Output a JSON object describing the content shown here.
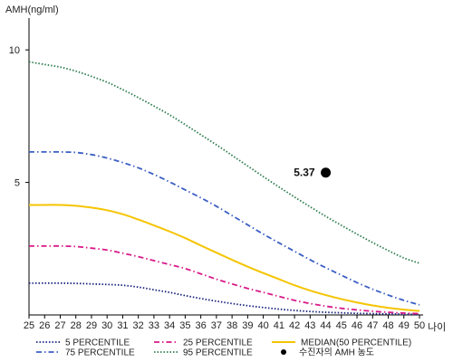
{
  "chart_data": {
    "type": "line",
    "ylabel": "AMH(ng/ml)",
    "xlabel": "나이",
    "x": [
      25,
      26,
      27,
      28,
      29,
      30,
      31,
      32,
      33,
      34,
      35,
      36,
      37,
      38,
      39,
      40,
      41,
      42,
      43,
      44,
      45,
      46,
      47,
      48,
      49,
      50
    ],
    "x_tick_labels": [
      "25",
      "26",
      "27",
      "28",
      "29",
      "30",
      "31",
      "32",
      "33",
      "34",
      "35",
      "36",
      "37",
      "38",
      "39",
      "40",
      "41",
      "42",
      "43",
      "44",
      "45",
      "46",
      "47",
      "48",
      "49",
      "50"
    ],
    "y_ticks": [
      5,
      10
    ],
    "y_tick_labels": [
      "5",
      "10"
    ],
    "xlim": [
      25,
      50
    ],
    "ylim": [
      0,
      11.2
    ],
    "grid": false,
    "legend_position": "bottom",
    "series": [
      {
        "name": "5 PERCENTILE",
        "color": "#1a237e",
        "dash": "dotted",
        "values": [
          1.2,
          1.2,
          1.2,
          1.19,
          1.17,
          1.15,
          1.12,
          1.05,
          0.95,
          0.85,
          0.73,
          0.62,
          0.52,
          0.43,
          0.35,
          0.28,
          0.22,
          0.17,
          0.13,
          0.1,
          0.08,
          0.06,
          0.05,
          0.04,
          0.03,
          0.02
        ]
      },
      {
        "name": "75 PERCENTILE",
        "color": "#3b5fc4",
        "dash": "dashdot",
        "values": [
          6.15,
          6.15,
          6.15,
          6.13,
          6.05,
          5.92,
          5.75,
          5.55,
          5.3,
          5.02,
          4.72,
          4.42,
          4.1,
          3.75,
          3.4,
          3.05,
          2.72,
          2.4,
          2.08,
          1.78,
          1.5,
          1.22,
          0.97,
          0.75,
          0.55,
          0.38
        ]
      },
      {
        "name": "25 PERCENTILE",
        "color": "#d81b8a",
        "dash": "dashdot",
        "values": [
          2.6,
          2.6,
          2.6,
          2.58,
          2.52,
          2.45,
          2.33,
          2.2,
          2.05,
          1.9,
          1.75,
          1.55,
          1.35,
          1.17,
          1.0,
          0.85,
          0.7,
          0.55,
          0.43,
          0.33,
          0.25,
          0.19,
          0.14,
          0.1,
          0.07,
          0.05
        ]
      },
      {
        "name": "95 PERCENTILE",
        "color": "#2e7d4f",
        "dash": "dotted",
        "values": [
          9.55,
          9.45,
          9.35,
          9.2,
          9.0,
          8.78,
          8.5,
          8.2,
          7.88,
          7.55,
          7.18,
          6.8,
          6.42,
          6.02,
          5.62,
          5.22,
          4.83,
          4.45,
          4.08,
          3.72,
          3.38,
          3.05,
          2.73,
          2.43,
          2.15,
          1.95
        ]
      },
      {
        "name": "MEDIAN(50 PERCENTILE)",
        "color": "#f5c400",
        "dash": "solid",
        "values": [
          4.15,
          4.15,
          4.15,
          4.12,
          4.05,
          3.95,
          3.8,
          3.6,
          3.38,
          3.15,
          2.9,
          2.62,
          2.35,
          2.08,
          1.82,
          1.58,
          1.35,
          1.12,
          0.92,
          0.75,
          0.6,
          0.47,
          0.36,
          0.27,
          0.2,
          0.15
        ]
      }
    ],
    "points": [
      {
        "name": "수진자의 AMH 농도",
        "x": 44,
        "y": 5.37,
        "label": "5.37",
        "color": "#000000"
      }
    ]
  }
}
